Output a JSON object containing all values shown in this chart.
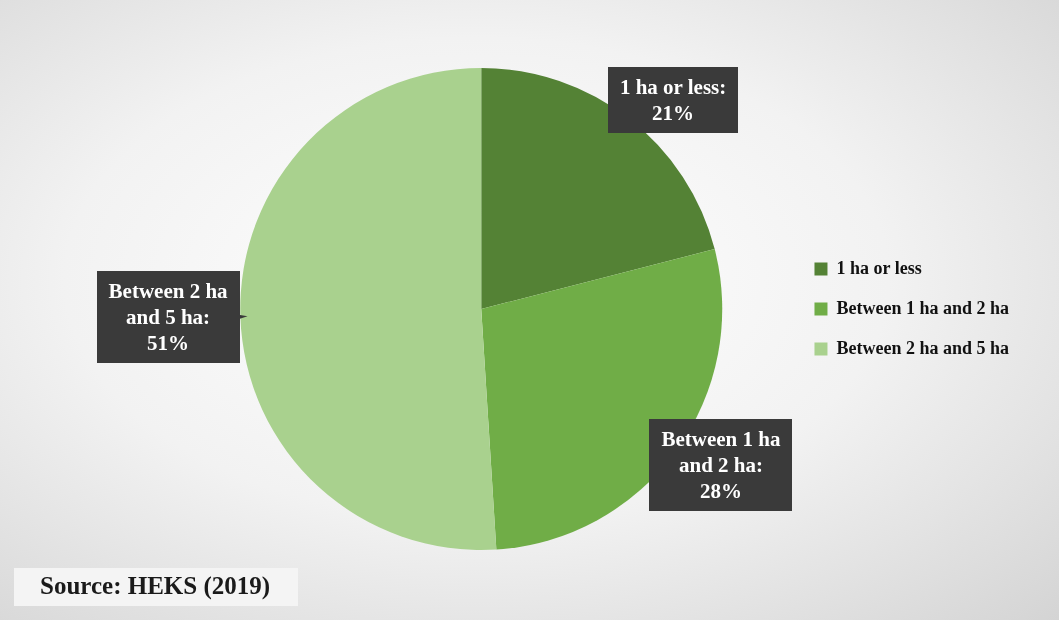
{
  "chart_data": {
    "type": "pie",
    "categories": [
      "1 ha or less",
      "Between 1 ha and 2 ha",
      "Between 2 ha and 5 ha"
    ],
    "values": [
      21,
      28,
      51
    ],
    "colors": [
      "#548235",
      "#70ad47",
      "#a9d18e"
    ],
    "value_labels": [
      "1 ha or less: 21%",
      "Between 1 ha and 2 ha: 28%",
      "Between 2 ha and 5 ha: 51%"
    ],
    "legend": "right",
    "annotations": [
      "Source: HEKS (2019)"
    ]
  }
}
